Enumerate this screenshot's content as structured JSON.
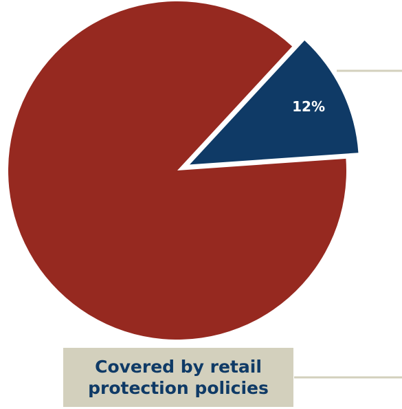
{
  "colors": {
    "covered": "#962920",
    "not_covered": "#0f3a66",
    "leader_line": "#d3d0bd",
    "callout_bg": "#d3d0bd",
    "callout_text": "#0f3a66",
    "label_text": "#ffffff"
  },
  "callout": {
    "text": "Covered by retail protection policies"
  },
  "chart_data": {
    "type": "pie",
    "title": "",
    "slices": [
      {
        "label": "12%",
        "value": 12,
        "color": "#0f3a66",
        "exploded": true,
        "show_label": true
      },
      {
        "label": "Covered by retail protection policies",
        "value": 88,
        "color": "#962920",
        "exploded": false,
        "show_label": false
      }
    ],
    "legend": "callout"
  }
}
